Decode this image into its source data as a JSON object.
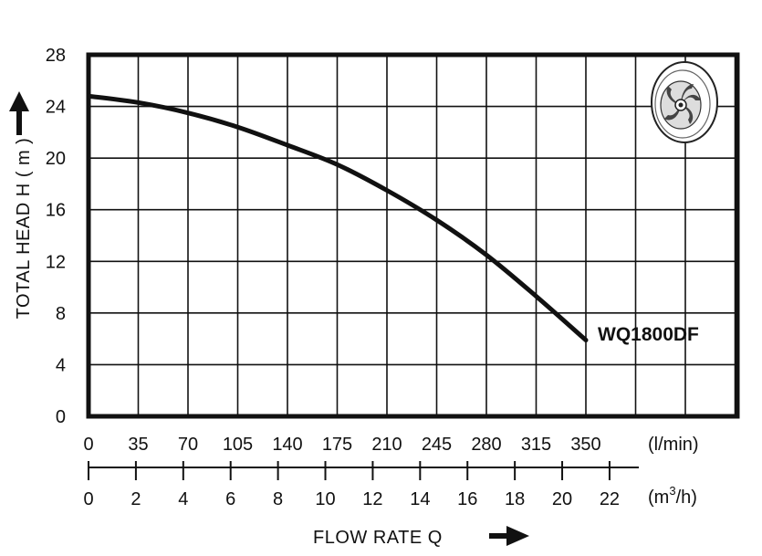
{
  "chart_data": {
    "type": "line",
    "ylabel": "TOTAL HEAD  H ( m )",
    "xlabel": "FLOW  RATE  Q",
    "ylim": [
      0,
      28
    ],
    "yticks": [
      "0",
      "4",
      "8",
      "12",
      "16",
      "20",
      "24",
      "28"
    ],
    "xlim": [
      0,
      385
    ],
    "x_ticks_lmin": [
      "0",
      "35",
      "70",
      "105",
      "140",
      "175",
      "210",
      "245",
      "280",
      "315",
      "350"
    ],
    "x_unit_lmin": "(l/min)",
    "x_ticks_m3h": [
      "0",
      "2",
      "4",
      "6",
      "8",
      "10",
      "12",
      "14",
      "16",
      "18",
      "20",
      "22"
    ],
    "x_unit_m3h_base": "(m",
    "x_unit_m3h_sup": "3",
    "x_unit_m3h_tail": "/h)",
    "grid": true,
    "legend": "none",
    "series": [
      {
        "name": "WQ1800DF",
        "x": [
          0,
          35,
          70,
          105,
          140,
          175,
          210,
          245,
          280,
          315,
          350
        ],
        "y": [
          24.8,
          24.3,
          23.5,
          22.4,
          21.0,
          19.5,
          17.5,
          15.2,
          12.5,
          9.3,
          5.9
        ]
      }
    ],
    "colors": {
      "line": "#111111",
      "grid": "#111111",
      "background": "#ffffff"
    },
    "inset_icon": "impeller-icon"
  }
}
